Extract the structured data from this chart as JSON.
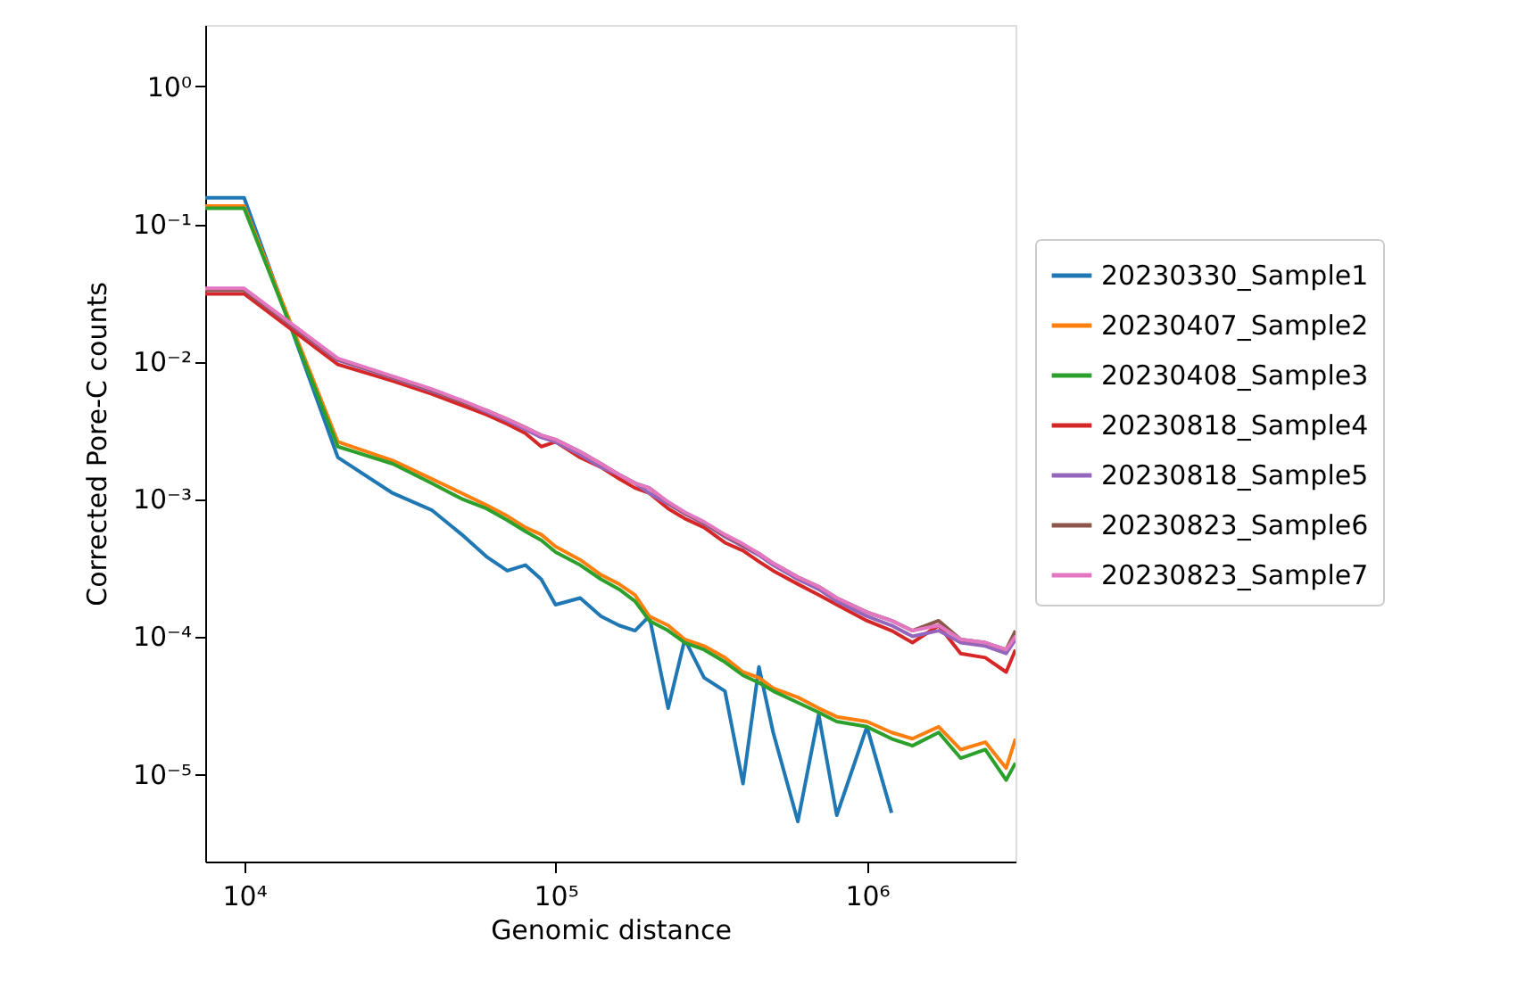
{
  "chart_data": {
    "type": "line",
    "xlabel": "Genomic distance",
    "ylabel": "Corrected Pore-C counts",
    "log": "xy",
    "grid": false,
    "legend": "right",
    "line_style": "solid",
    "marker": "none",
    "xlim": [
      7500,
      3000000
    ],
    "ylim": [
      2.3e-06,
      2.8
    ],
    "xticks": [
      {
        "value": 10000,
        "label": "10⁴"
      },
      {
        "value": 100000,
        "label": "10⁵"
      },
      {
        "value": 1000000,
        "label": "10⁶"
      }
    ],
    "yticks": [
      {
        "value": 1,
        "label": "10⁰"
      },
      {
        "value": 0.1,
        "label": "10⁻¹"
      },
      {
        "value": 0.01,
        "label": "10⁻²"
      },
      {
        "value": 0.001,
        "label": "10⁻³"
      },
      {
        "value": 0.0001,
        "label": "10⁻⁴"
      },
      {
        "value": 1e-05,
        "label": "10⁻⁵"
      }
    ],
    "x": [
      7500,
      10000,
      20000,
      30000,
      40000,
      50000,
      60000,
      70000,
      80000,
      90000,
      100000,
      120000,
      140000,
      160000,
      180000,
      200000,
      230000,
      260000,
      300000,
      350000,
      400000,
      450000,
      500000,
      600000,
      700000,
      800000,
      1000000,
      1200000,
      1400000,
      1700000,
      2000000,
      2400000,
      2800000,
      3000000
    ],
    "series": [
      {
        "name": "20230330_Sample1",
        "color": "#1f77b4",
        "values": [
          0.155,
          0.155,
          0.002,
          0.0011,
          0.00083,
          0.00055,
          0.00038,
          0.0003,
          0.00033,
          0.00026,
          0.00017,
          0.00019,
          0.00014,
          0.00012,
          0.00011,
          0.00014,
          3e-05,
          9.5e-05,
          5e-05,
          4e-05,
          8.5e-06,
          6e-05,
          2e-05,
          4.5e-06,
          2.7e-05,
          5e-06,
          2.2e-05,
          5.2e-06,
          null,
          null,
          null,
          null,
          null,
          null
        ]
      },
      {
        "name": "20230407_Sample2",
        "color": "#ff7f0e",
        "values": [
          0.135,
          0.135,
          0.0026,
          0.0019,
          0.0014,
          0.0011,
          0.0009,
          0.00075,
          0.00062,
          0.00055,
          0.00045,
          0.00036,
          0.00028,
          0.00024,
          0.0002,
          0.00014,
          0.00012,
          9.5e-05,
          8.5e-05,
          7e-05,
          5.5e-05,
          5e-05,
          4.2e-05,
          3.6e-05,
          3e-05,
          2.6e-05,
          2.4e-05,
          2e-05,
          1.8e-05,
          2.2e-05,
          1.5e-05,
          1.7e-05,
          1.1e-05,
          1.8e-05
        ]
      },
      {
        "name": "20230408_Sample3",
        "color": "#2ca02c",
        "values": [
          0.13,
          0.13,
          0.0024,
          0.0018,
          0.0013,
          0.001,
          0.00085,
          0.0007,
          0.00058,
          0.0005,
          0.00041,
          0.00033,
          0.00026,
          0.00022,
          0.00018,
          0.00013,
          0.00011,
          9e-05,
          8e-05,
          6.5e-05,
          5.2e-05,
          4.6e-05,
          4e-05,
          3.3e-05,
          2.8e-05,
          2.4e-05,
          2.2e-05,
          1.8e-05,
          1.6e-05,
          2e-05,
          1.3e-05,
          1.5e-05,
          9e-06,
          1.2e-05
        ]
      },
      {
        "name": "20230818_Sample4",
        "color": "#d62728",
        "values": [
          0.031,
          0.031,
          0.0095,
          0.0072,
          0.0058,
          0.0048,
          0.0041,
          0.0035,
          0.003,
          0.0024,
          0.0026,
          0.002,
          0.0017,
          0.0014,
          0.0012,
          0.0011,
          0.00085,
          0.00072,
          0.00062,
          0.00048,
          0.00042,
          0.00035,
          0.0003,
          0.00024,
          0.0002,
          0.00017,
          0.00013,
          0.00011,
          9e-05,
          0.00012,
          7.5e-05,
          7e-05,
          5.5e-05,
          8e-05
        ]
      },
      {
        "name": "20230818_Sample5",
        "color": "#9467bd",
        "values": [
          0.033,
          0.033,
          0.0102,
          0.0076,
          0.0061,
          0.0051,
          0.0043,
          0.0037,
          0.0032,
          0.0028,
          0.0026,
          0.0021,
          0.0017,
          0.0015,
          0.0013,
          0.0011,
          0.00092,
          0.00078,
          0.00066,
          0.00053,
          0.00045,
          0.00039,
          0.00033,
          0.00026,
          0.00022,
          0.00018,
          0.00014,
          0.00012,
          0.0001,
          0.00011,
          9e-05,
          8.5e-05,
          7.5e-05,
          9.5e-05
        ]
      },
      {
        "name": "20230823_Sample6",
        "color": "#8c564b",
        "values": [
          0.033,
          0.033,
          0.0104,
          0.0077,
          0.0062,
          0.0051,
          0.0044,
          0.0038,
          0.0033,
          0.0029,
          0.0027,
          0.0022,
          0.0018,
          0.0015,
          0.0013,
          0.0012,
          0.00094,
          0.00079,
          0.00067,
          0.00054,
          0.00046,
          0.0004,
          0.00034,
          0.00027,
          0.00023,
          0.00019,
          0.00015,
          0.00013,
          0.00011,
          0.00013,
          9.5e-05,
          9e-05,
          8e-05,
          0.00011
        ]
      },
      {
        "name": "20230823_Sample7",
        "color": "#e377c2",
        "values": [
          0.034,
          0.034,
          0.0105,
          0.0078,
          0.0063,
          0.0052,
          0.0044,
          0.0038,
          0.0033,
          0.0029,
          0.0027,
          0.0022,
          0.0018,
          0.0015,
          0.0013,
          0.0012,
          0.00095,
          0.0008,
          0.00068,
          0.00055,
          0.00047,
          0.0004,
          0.00034,
          0.00027,
          0.00023,
          0.00019,
          0.00015,
          0.00013,
          0.00011,
          0.00012,
          9.5e-05,
          9e-05,
          8e-05,
          0.0001
        ]
      }
    ]
  }
}
